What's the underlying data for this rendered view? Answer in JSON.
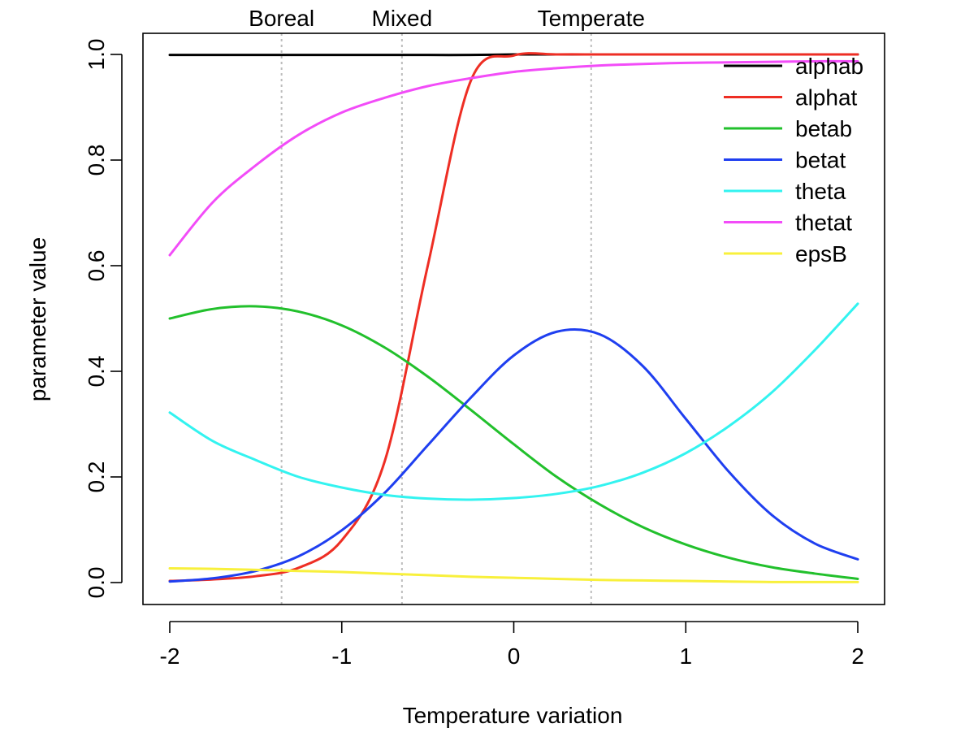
{
  "chart_data": {
    "type": "line",
    "title": "",
    "xlabel": "Temperature variation",
    "ylabel": "parameter value",
    "xlim": [
      -2,
      2
    ],
    "ylim": [
      0,
      1
    ],
    "x_ticks": [
      -2,
      -1,
      0,
      1,
      2
    ],
    "x_tick_labels": [
      "-2",
      "-1",
      "0",
      "1",
      "2"
    ],
    "y_ticks": [
      0,
      0.2,
      0.4,
      0.6,
      0.8,
      1.0
    ],
    "y_tick_labels": [
      "0.0",
      "0.2",
      "0.4",
      "0.6",
      "0.8",
      "1.0"
    ],
    "grid": false,
    "legend_position": "top-right",
    "vlines": [
      {
        "x": -1.35,
        "label": "Boreal"
      },
      {
        "x": -0.65,
        "label": "Mixed"
      },
      {
        "x": 0.45,
        "label": "Temperate"
      }
    ],
    "vline_color": "#bdbdbd",
    "x": [
      -2.0,
      -1.75,
      -1.5,
      -1.25,
      -1.0,
      -0.75,
      -0.5,
      -0.25,
      0.0,
      0.25,
      0.5,
      0.75,
      1.0,
      1.25,
      1.5,
      1.75,
      2.0
    ],
    "series": [
      {
        "name": "alphab",
        "color": "#000000",
        "values": [
          0.999,
          0.999,
          0.999,
          0.999,
          0.999,
          0.999,
          0.999,
          0.999,
          1.0,
          1.0,
          1.0,
          1.0,
          1.0,
          1.0,
          1.0,
          1.0,
          1.0
        ]
      },
      {
        "name": "alphat",
        "color": "#ee2e24",
        "values": [
          0.003,
          0.006,
          0.012,
          0.028,
          0.08,
          0.23,
          0.6,
          0.95,
          0.998,
          1.0,
          1.0,
          1.0,
          1.0,
          1.0,
          1.0,
          1.0,
          1.0
        ]
      },
      {
        "name": "betab",
        "color": "#22c02c",
        "values": [
          0.5,
          0.518,
          0.523,
          0.513,
          0.487,
          0.445,
          0.39,
          0.327,
          0.262,
          0.2,
          0.148,
          0.105,
          0.072,
          0.047,
          0.029,
          0.017,
          0.007
        ]
      },
      {
        "name": "betat",
        "color": "#1f3ff0",
        "values": [
          0.002,
          0.008,
          0.022,
          0.05,
          0.099,
          0.17,
          0.26,
          0.35,
          0.43,
          0.475,
          0.47,
          0.41,
          0.31,
          0.21,
          0.128,
          0.074,
          0.044
        ]
      },
      {
        "name": "theta",
        "color": "#33f3f0",
        "values": [
          0.322,
          0.268,
          0.232,
          0.2,
          0.18,
          0.166,
          0.159,
          0.157,
          0.16,
          0.168,
          0.183,
          0.208,
          0.245,
          0.296,
          0.36,
          0.44,
          0.528
        ]
      },
      {
        "name": "thetat",
        "color": "#f24cf8",
        "values": [
          0.62,
          0.72,
          0.79,
          0.848,
          0.89,
          0.918,
          0.94,
          0.955,
          0.967,
          0.974,
          0.979,
          0.982,
          0.984,
          0.985,
          0.986,
          0.987,
          0.987
        ]
      },
      {
        "name": "epsB",
        "color": "#f8f03c",
        "values": [
          0.027,
          0.026,
          0.024,
          0.022,
          0.02,
          0.017,
          0.014,
          0.011,
          0.009,
          0.007,
          0.005,
          0.004,
          0.003,
          0.002,
          0.001,
          0.001,
          0.001
        ]
      }
    ]
  }
}
